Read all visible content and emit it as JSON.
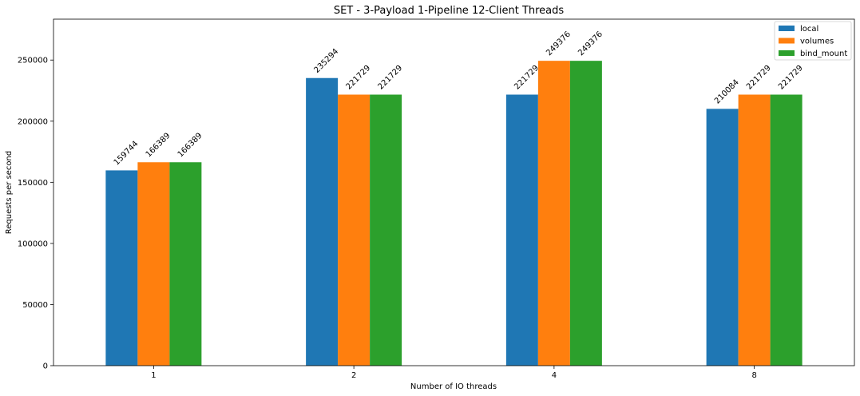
{
  "chart_data": {
    "type": "bar",
    "title": "SET - 3-Payload 1-Pipeline 12-Client Threads",
    "xlabel": "Number of IO threads",
    "ylabel": "Requests per second",
    "categories": [
      "1",
      "2",
      "4",
      "8"
    ],
    "series": [
      {
        "name": "local",
        "color": "#1f77b4",
        "values": [
          159744,
          235294,
          221729,
          210084
        ]
      },
      {
        "name": "volumes",
        "color": "#ff7f0e",
        "values": [
          166389,
          221729,
          249376,
          221729
        ]
      },
      {
        "name": "bind_mount",
        "color": "#2ca02c",
        "values": [
          166389,
          221729,
          249376,
          221729
        ]
      }
    ],
    "ylim": [
      0,
      283450
    ],
    "yticks": [
      0,
      50000,
      100000,
      150000,
      200000,
      250000
    ],
    "legend_position": "top-right",
    "grid": false
  }
}
